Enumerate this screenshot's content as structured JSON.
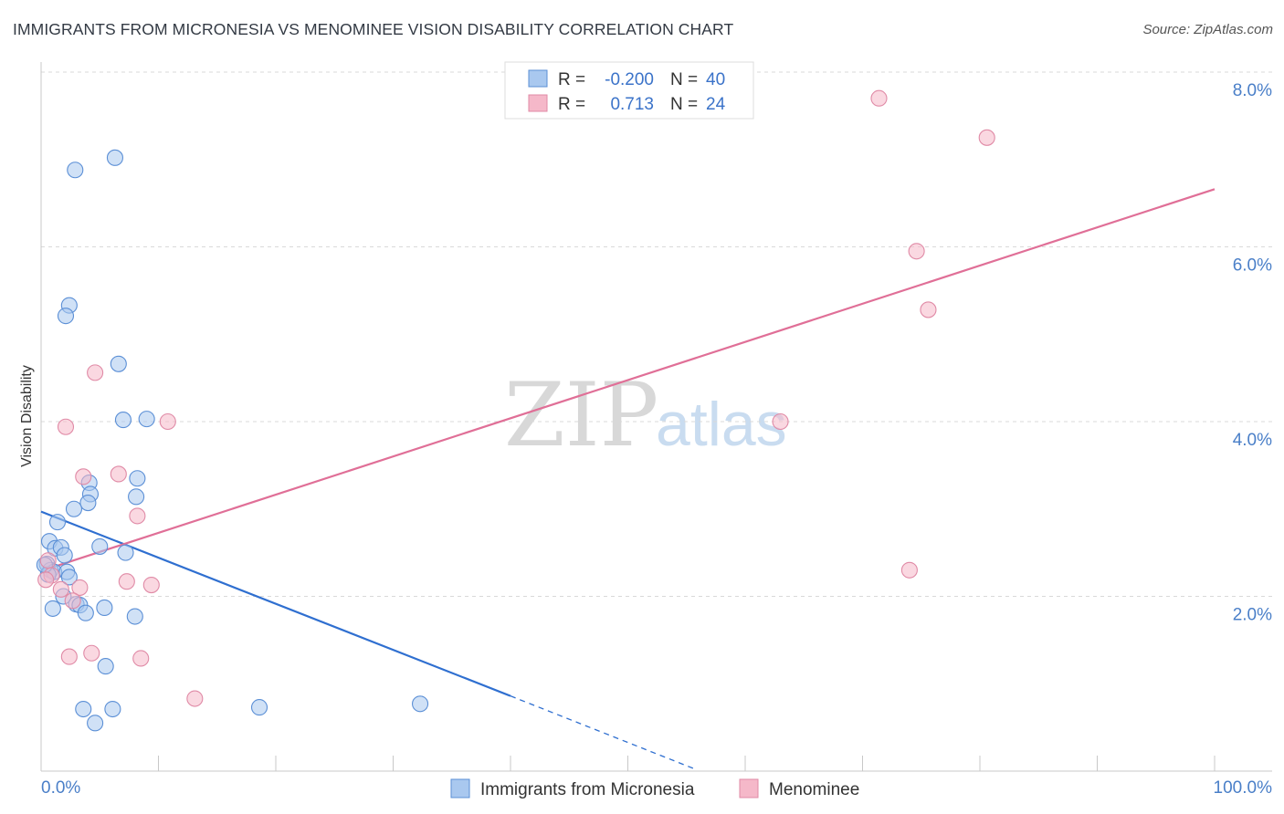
{
  "title": "IMMIGRANTS FROM MICRONESIA VS MENOMINEE VISION DISABILITY CORRELATION CHART",
  "source": "Source: ZipAtlas.com",
  "watermark": {
    "zip": "ZIP",
    "atlas": "atlas"
  },
  "legend_top": [
    {
      "r_label": "R =",
      "r_value": "-0.200",
      "n_label": "N =",
      "n_value": "40"
    },
    {
      "r_label": "R =",
      "r_value": "0.713",
      "n_label": "N =",
      "n_value": "24"
    }
  ],
  "legend_bottom": [
    "Immigrants from Micronesia",
    "Menominee"
  ],
  "colors": {
    "blue_fill": "#a9c8ef",
    "blue_stroke": "#5b8fd6",
    "blue_line": "#2f6fd0",
    "pink_fill": "#f5b8c9",
    "pink_stroke": "#e08aa6",
    "pink_line": "#e06f97",
    "tick_text": "#4a7fc8",
    "grid": "#d9d9d9"
  },
  "chart_data": {
    "type": "scatter",
    "title": "IMMIGRANTS FROM MICRONESIA VS MENOMINEE VISION DISABILITY CORRELATION CHART",
    "xlabel": "",
    "ylabel": "Vision Disability",
    "xlim": [
      0,
      100
    ],
    "ylim": [
      0,
      8.0
    ],
    "x_tick_labels": [
      "0.0%",
      "100.0%"
    ],
    "y_ticks": [
      2.0,
      4.0,
      6.0,
      8.0
    ],
    "y_tick_labels": [
      "2.0%",
      "4.0%",
      "6.0%",
      "8.0%"
    ],
    "grid": true,
    "series": [
      {
        "name": "Immigrants from Micronesia",
        "color": "blue",
        "points": [
          [
            6.3,
            7.02
          ],
          [
            2.9,
            6.88
          ],
          [
            2.4,
            5.33
          ],
          [
            2.1,
            5.21
          ],
          [
            6.6,
            4.66
          ],
          [
            7.0,
            4.02
          ],
          [
            9.0,
            4.03
          ],
          [
            8.2,
            3.35
          ],
          [
            4.1,
            3.3
          ],
          [
            4.2,
            3.17
          ],
          [
            8.1,
            3.14
          ],
          [
            4.0,
            3.07
          ],
          [
            2.8,
            3.0
          ],
          [
            1.4,
            2.85
          ],
          [
            0.7,
            2.63
          ],
          [
            1.2,
            2.55
          ],
          [
            1.7,
            2.56
          ],
          [
            5.0,
            2.57
          ],
          [
            7.2,
            2.5
          ],
          [
            2.0,
            2.47
          ],
          [
            0.5,
            2.37
          ],
          [
            0.8,
            2.3
          ],
          [
            1.1,
            2.28
          ],
          [
            2.2,
            2.28
          ],
          [
            2.4,
            2.22
          ],
          [
            0.6,
            2.25
          ],
          [
            1.9,
            2.0
          ],
          [
            3.0,
            1.91
          ],
          [
            3.3,
            1.9
          ],
          [
            1.0,
            1.86
          ],
          [
            5.4,
            1.87
          ],
          [
            3.8,
            1.81
          ],
          [
            8.0,
            1.77
          ],
          [
            5.5,
            1.2
          ],
          [
            3.6,
            0.71
          ],
          [
            6.1,
            0.71
          ],
          [
            18.6,
            0.73
          ],
          [
            32.3,
            0.77
          ],
          [
            4.6,
            0.55
          ],
          [
            0.3,
            2.36
          ]
        ]
      },
      {
        "name": "Menominee",
        "color": "pink",
        "points": [
          [
            71.4,
            7.7
          ],
          [
            80.6,
            7.25
          ],
          [
            74.6,
            5.95
          ],
          [
            75.6,
            5.28
          ],
          [
            4.6,
            4.56
          ],
          [
            10.8,
            4.0
          ],
          [
            2.1,
            3.94
          ],
          [
            63.0,
            4.0
          ],
          [
            3.6,
            3.37
          ],
          [
            6.6,
            3.4
          ],
          [
            8.2,
            2.92
          ],
          [
            0.6,
            2.41
          ],
          [
            1.7,
            2.08
          ],
          [
            0.9,
            2.24
          ],
          [
            0.4,
            2.19
          ],
          [
            7.3,
            2.17
          ],
          [
            9.4,
            2.13
          ],
          [
            3.3,
            2.1
          ],
          [
            74.0,
            2.3
          ],
          [
            2.7,
            1.95
          ],
          [
            2.4,
            1.31
          ],
          [
            4.3,
            1.35
          ],
          [
            8.5,
            1.29
          ],
          [
            13.1,
            0.83
          ]
        ]
      }
    ],
    "trendlines": [
      {
        "series": "Immigrants from Micronesia",
        "x": [
          0,
          40
        ],
        "y": [
          2.97,
          0.86
        ],
        "dashed_extension": {
          "x": [
            40,
            55.6
          ],
          "y": [
            0.86,
            0.03
          ]
        }
      },
      {
        "series": "Menominee",
        "x": [
          0,
          100
        ],
        "y": [
          2.29,
          6.66
        ]
      }
    ]
  }
}
